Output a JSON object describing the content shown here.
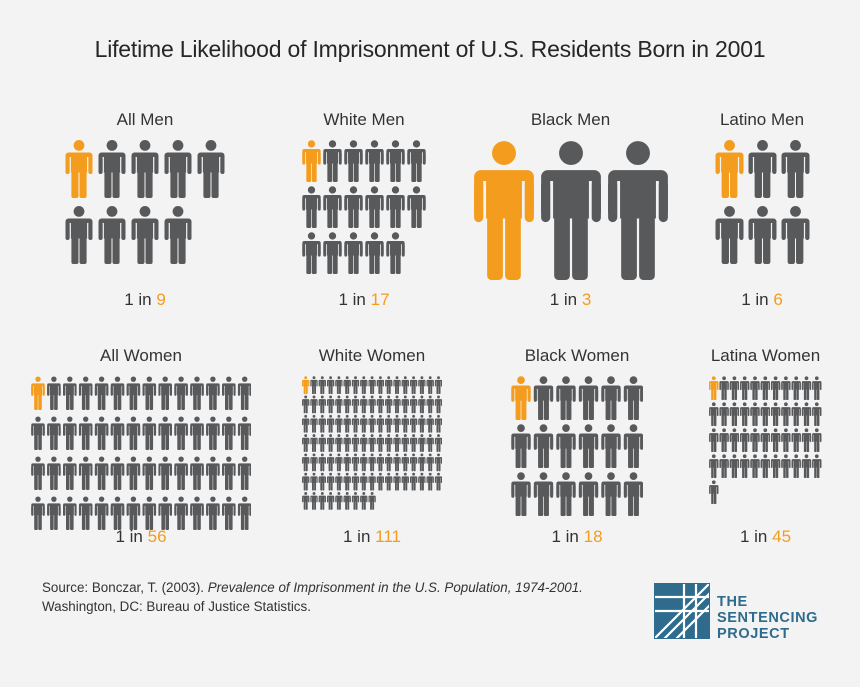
{
  "title": "Lifetime Likelihood of Imprisonment of U.S. Residents Born in 2001",
  "colors": {
    "highlight": "#f39c1e",
    "figure": "#58595b",
    "text_accent": "#f39c1e"
  },
  "chart_data": {
    "type": "pictograph",
    "unit": "people",
    "panels": [
      {
        "label": "All Men",
        "one_in": 9,
        "ratio_prefix": "1 in",
        "ratio_value": "9"
      },
      {
        "label": "White Men",
        "one_in": 17,
        "ratio_prefix": "1 in",
        "ratio_value": "17"
      },
      {
        "label": "Black Men",
        "one_in": 3,
        "ratio_prefix": "1 in",
        "ratio_value": "3"
      },
      {
        "label": "Latino Men",
        "one_in": 6,
        "ratio_prefix": "1 in",
        "ratio_value": "6"
      },
      {
        "label": "All Women",
        "one_in": 56,
        "ratio_prefix": "1 in",
        "ratio_value": "56"
      },
      {
        "label": "White Women",
        "one_in": 111,
        "ratio_prefix": "1 in",
        "ratio_value": "111"
      },
      {
        "label": "Black Women",
        "one_in": 18,
        "ratio_prefix": "1 in",
        "ratio_value": "18"
      },
      {
        "label": "Latina Women",
        "one_in": 45,
        "ratio_prefix": "1 in",
        "ratio_value": "45"
      }
    ]
  },
  "source": {
    "prefix": "Source: Bonczar, T. (2003). ",
    "title_italic": "Prevalence of Imprisonment in the U.S. Population, 1974-2001.",
    "suffix": " Washington, DC: Bureau of Justice Statistics."
  },
  "logo": {
    "line1": "THE",
    "line2": "SENTENCING",
    "line3": "PROJECT",
    "color": "#2e6b8c"
  }
}
